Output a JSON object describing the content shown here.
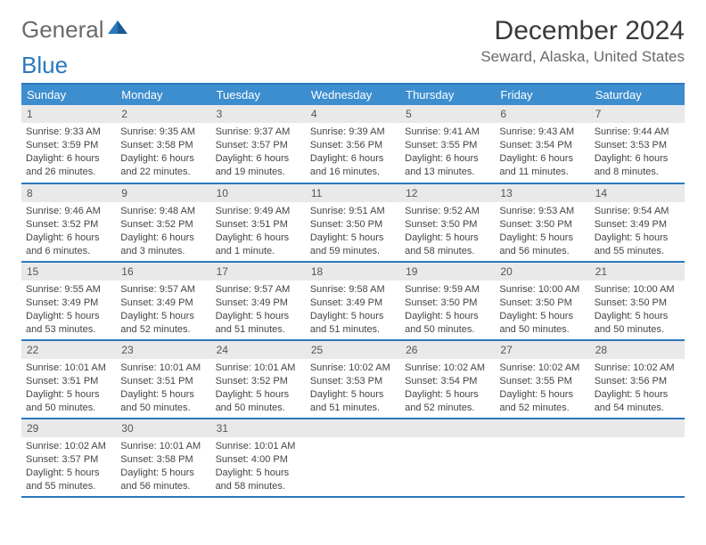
{
  "logo": {
    "text1": "General",
    "text2": "Blue"
  },
  "title": "December 2024",
  "location": "Seward, Alaska, United States",
  "colors": {
    "header_bg": "#3d8ecf",
    "border": "#2c78bd",
    "daynum_bg": "#e9e9e9",
    "text": "#3a3a3a",
    "muted": "#6a6a6a"
  },
  "weekdays": [
    "Sunday",
    "Monday",
    "Tuesday",
    "Wednesday",
    "Thursday",
    "Friday",
    "Saturday"
  ],
  "days": [
    {
      "n": "1",
      "sr": "9:33 AM",
      "ss": "3:59 PM",
      "dl": "6 hours and 26 minutes."
    },
    {
      "n": "2",
      "sr": "9:35 AM",
      "ss": "3:58 PM",
      "dl": "6 hours and 22 minutes."
    },
    {
      "n": "3",
      "sr": "9:37 AM",
      "ss": "3:57 PM",
      "dl": "6 hours and 19 minutes."
    },
    {
      "n": "4",
      "sr": "9:39 AM",
      "ss": "3:56 PM",
      "dl": "6 hours and 16 minutes."
    },
    {
      "n": "5",
      "sr": "9:41 AM",
      "ss": "3:55 PM",
      "dl": "6 hours and 13 minutes."
    },
    {
      "n": "6",
      "sr": "9:43 AM",
      "ss": "3:54 PM",
      "dl": "6 hours and 11 minutes."
    },
    {
      "n": "7",
      "sr": "9:44 AM",
      "ss": "3:53 PM",
      "dl": "6 hours and 8 minutes."
    },
    {
      "n": "8",
      "sr": "9:46 AM",
      "ss": "3:52 PM",
      "dl": "6 hours and 6 minutes."
    },
    {
      "n": "9",
      "sr": "9:48 AM",
      "ss": "3:52 PM",
      "dl": "6 hours and 3 minutes."
    },
    {
      "n": "10",
      "sr": "9:49 AM",
      "ss": "3:51 PM",
      "dl": "6 hours and 1 minute."
    },
    {
      "n": "11",
      "sr": "9:51 AM",
      "ss": "3:50 PM",
      "dl": "5 hours and 59 minutes."
    },
    {
      "n": "12",
      "sr": "9:52 AM",
      "ss": "3:50 PM",
      "dl": "5 hours and 58 minutes."
    },
    {
      "n": "13",
      "sr": "9:53 AM",
      "ss": "3:50 PM",
      "dl": "5 hours and 56 minutes."
    },
    {
      "n": "14",
      "sr": "9:54 AM",
      "ss": "3:49 PM",
      "dl": "5 hours and 55 minutes."
    },
    {
      "n": "15",
      "sr": "9:55 AM",
      "ss": "3:49 PM",
      "dl": "5 hours and 53 minutes."
    },
    {
      "n": "16",
      "sr": "9:57 AM",
      "ss": "3:49 PM",
      "dl": "5 hours and 52 minutes."
    },
    {
      "n": "17",
      "sr": "9:57 AM",
      "ss": "3:49 PM",
      "dl": "5 hours and 51 minutes."
    },
    {
      "n": "18",
      "sr": "9:58 AM",
      "ss": "3:49 PM",
      "dl": "5 hours and 51 minutes."
    },
    {
      "n": "19",
      "sr": "9:59 AM",
      "ss": "3:50 PM",
      "dl": "5 hours and 50 minutes."
    },
    {
      "n": "20",
      "sr": "10:00 AM",
      "ss": "3:50 PM",
      "dl": "5 hours and 50 minutes."
    },
    {
      "n": "21",
      "sr": "10:00 AM",
      "ss": "3:50 PM",
      "dl": "5 hours and 50 minutes."
    },
    {
      "n": "22",
      "sr": "10:01 AM",
      "ss": "3:51 PM",
      "dl": "5 hours and 50 minutes."
    },
    {
      "n": "23",
      "sr": "10:01 AM",
      "ss": "3:51 PM",
      "dl": "5 hours and 50 minutes."
    },
    {
      "n": "24",
      "sr": "10:01 AM",
      "ss": "3:52 PM",
      "dl": "5 hours and 50 minutes."
    },
    {
      "n": "25",
      "sr": "10:02 AM",
      "ss": "3:53 PM",
      "dl": "5 hours and 51 minutes."
    },
    {
      "n": "26",
      "sr": "10:02 AM",
      "ss": "3:54 PM",
      "dl": "5 hours and 52 minutes."
    },
    {
      "n": "27",
      "sr": "10:02 AM",
      "ss": "3:55 PM",
      "dl": "5 hours and 52 minutes."
    },
    {
      "n": "28",
      "sr": "10:02 AM",
      "ss": "3:56 PM",
      "dl": "5 hours and 54 minutes."
    },
    {
      "n": "29",
      "sr": "10:02 AM",
      "ss": "3:57 PM",
      "dl": "5 hours and 55 minutes."
    },
    {
      "n": "30",
      "sr": "10:01 AM",
      "ss": "3:58 PM",
      "dl": "5 hours and 56 minutes."
    },
    {
      "n": "31",
      "sr": "10:01 AM",
      "ss": "4:00 PM",
      "dl": "5 hours and 58 minutes."
    }
  ],
  "labels": {
    "sunrise": "Sunrise:",
    "sunset": "Sunset:",
    "daylight": "Daylight:"
  }
}
